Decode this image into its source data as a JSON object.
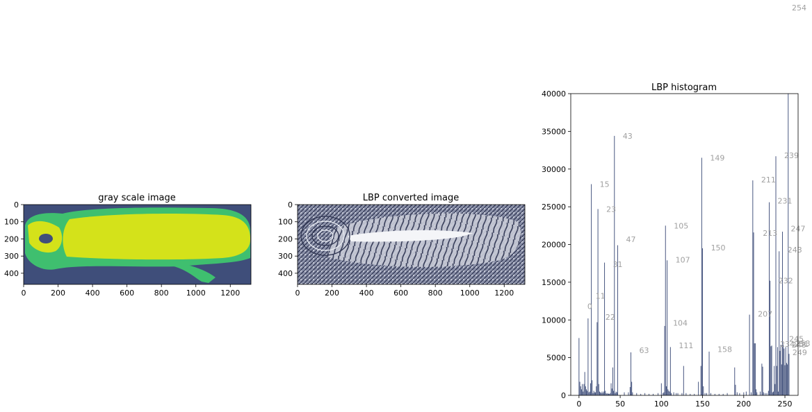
{
  "top_right_label": "254",
  "gray_panel": {
    "title": "gray scale image",
    "xticks": [
      "0",
      "200",
      "400",
      "600",
      "800",
      "1000",
      "1200"
    ],
    "yticks": [
      "0",
      "100",
      "200",
      "300",
      "400"
    ],
    "colors": {
      "background": "#3f4e7a",
      "mid": "#3fbf6f",
      "high": "#d4e21a",
      "dark": "#2a3c66"
    }
  },
  "lbp_panel": {
    "title": "LBP converted image",
    "xticks": [
      "0",
      "200",
      "400",
      "600",
      "800",
      "1000",
      "1200"
    ],
    "yticks": [
      "0",
      "100",
      "200",
      "300",
      "400"
    ]
  },
  "chart_data": {
    "type": "bar",
    "title": "LBP histogram",
    "xlim": [
      -10,
      266
    ],
    "ylim": [
      0,
      40000
    ],
    "xticks": [
      0,
      50,
      100,
      150,
      200,
      250
    ],
    "yticks": [
      0,
      5000,
      10000,
      15000,
      20000,
      25000,
      30000,
      35000,
      40000
    ],
    "bar_color": "#3f4e7a",
    "annotation_color": "#a0a0a0",
    "bins": [
      [
        0,
        7600
      ],
      [
        1,
        1800
      ],
      [
        2,
        1200
      ],
      [
        3,
        800
      ],
      [
        4,
        1500
      ],
      [
        5,
        500
      ],
      [
        6,
        1500
      ],
      [
        7,
        3100
      ],
      [
        8,
        1200
      ],
      [
        9,
        800
      ],
      [
        10,
        600
      ],
      [
        11,
        10200
      ],
      [
        12,
        400
      ],
      [
        13,
        500
      ],
      [
        14,
        1600
      ],
      [
        15,
        28000
      ],
      [
        16,
        2000
      ],
      [
        17,
        300
      ],
      [
        18,
        600
      ],
      [
        19,
        400
      ],
      [
        20,
        400
      ],
      [
        21,
        1200
      ],
      [
        22,
        9700
      ],
      [
        23,
        24700
      ],
      [
        24,
        1500
      ],
      [
        25,
        500
      ],
      [
        26,
        400
      ],
      [
        27,
        300
      ],
      [
        28,
        500
      ],
      [
        29,
        300
      ],
      [
        30,
        500
      ],
      [
        31,
        17600
      ],
      [
        32,
        600
      ],
      [
        33,
        300
      ],
      [
        34,
        200
      ],
      [
        35,
        300
      ],
      [
        36,
        200
      ],
      [
        37,
        200
      ],
      [
        38,
        300
      ],
      [
        39,
        1600
      ],
      [
        40,
        900
      ],
      [
        41,
        3700
      ],
      [
        42,
        600
      ],
      [
        43,
        34400
      ],
      [
        44,
        300
      ],
      [
        45,
        500
      ],
      [
        46,
        400
      ],
      [
        47,
        19900
      ],
      [
        55,
        400
      ],
      [
        60,
        400
      ],
      [
        62,
        1100
      ],
      [
        63,
        5700
      ],
      [
        64,
        1800
      ],
      [
        65,
        400
      ],
      [
        70,
        300
      ],
      [
        75,
        200
      ],
      [
        80,
        300
      ],
      [
        85,
        200
      ],
      [
        90,
        200
      ],
      [
        96,
        300
      ],
      [
        100,
        1600
      ],
      [
        102,
        300
      ],
      [
        103,
        400
      ],
      [
        104,
        9200
      ],
      [
        105,
        22500
      ],
      [
        106,
        1200
      ],
      [
        107,
        17900
      ],
      [
        108,
        800
      ],
      [
        109,
        600
      ],
      [
        110,
        500
      ],
      [
        111,
        6400
      ],
      [
        112,
        300
      ],
      [
        115,
        400
      ],
      [
        118,
        300
      ],
      [
        120,
        300
      ],
      [
        125,
        300
      ],
      [
        127,
        3900
      ],
      [
        130,
        300
      ],
      [
        135,
        200
      ],
      [
        140,
        200
      ],
      [
        145,
        1800
      ],
      [
        148,
        3900
      ],
      [
        149,
        31500
      ],
      [
        150,
        19500
      ],
      [
        151,
        1200
      ],
      [
        153,
        300
      ],
      [
        155,
        300
      ],
      [
        158,
        5800
      ],
      [
        160,
        300
      ],
      [
        165,
        200
      ],
      [
        170,
        200
      ],
      [
        175,
        200
      ],
      [
        180,
        300
      ],
      [
        189,
        3700
      ],
      [
        190,
        1400
      ],
      [
        192,
        400
      ],
      [
        195,
        300
      ],
      [
        200,
        400
      ],
      [
        203,
        500
      ],
      [
        207,
        10700
      ],
      [
        209,
        400
      ],
      [
        211,
        28500
      ],
      [
        212,
        21600
      ],
      [
        213,
        6900
      ],
      [
        214,
        6900
      ],
      [
        215,
        800
      ],
      [
        216,
        400
      ],
      [
        220,
        500
      ],
      [
        222,
        4200
      ],
      [
        223,
        3800
      ],
      [
        224,
        400
      ],
      [
        226,
        300
      ],
      [
        228,
        300
      ],
      [
        230,
        600
      ],
      [
        231,
        25600
      ],
      [
        232,
        15200
      ],
      [
        233,
        6500
      ],
      [
        234,
        6600
      ],
      [
        235,
        400
      ],
      [
        236,
        500
      ],
      [
        237,
        3900
      ],
      [
        238,
        1500
      ],
      [
        239,
        31700
      ],
      [
        240,
        3900
      ],
      [
        241,
        6400
      ],
      [
        242,
        500
      ],
      [
        243,
        19100
      ],
      [
        244,
        5900
      ],
      [
        245,
        6700
      ],
      [
        246,
        4100
      ],
      [
        247,
        21700
      ],
      [
        248,
        6700
      ],
      [
        249,
        6200
      ],
      [
        250,
        4000
      ],
      [
        251,
        6400
      ],
      [
        252,
        4300
      ],
      [
        253,
        4100
      ],
      [
        254,
        41000
      ],
      [
        255,
        5500
      ]
    ],
    "annotations": [
      [
        "0",
        0,
        11800
      ],
      [
        "11",
        10,
        13200
      ],
      [
        "15",
        15,
        28000
      ],
      [
        "22",
        22,
        10400
      ],
      [
        "23",
        23,
        24700
      ],
      [
        "31",
        31,
        17400
      ],
      [
        "43",
        43,
        34400
      ],
      [
        "47",
        47,
        20700
      ],
      [
        "63",
        63,
        6000
      ],
      [
        "104",
        104,
        9600
      ],
      [
        "105",
        105,
        22500
      ],
      [
        "107",
        107,
        18000
      ],
      [
        "111",
        111,
        6600
      ],
      [
        "149",
        149,
        31500
      ],
      [
        "150",
        150,
        19600
      ],
      [
        "158",
        158,
        6100
      ],
      [
        "207",
        207,
        10800
      ],
      [
        "211",
        211,
        28600
      ],
      [
        "213",
        213,
        21500
      ],
      [
        "231",
        231,
        25800
      ],
      [
        "232",
        232,
        15200
      ],
      [
        "234",
        234,
        6800
      ],
      [
        "239",
        239,
        31800
      ],
      [
        "243",
        243,
        19300
      ],
      [
        "247",
        247,
        22100
      ],
      [
        "245",
        245,
        7500
      ],
      [
        "248",
        248,
        6700
      ],
      [
        "251",
        251,
        6800
      ],
      [
        "253",
        253,
        6900
      ],
      [
        "249",
        249,
        5700
      ]
    ]
  }
}
